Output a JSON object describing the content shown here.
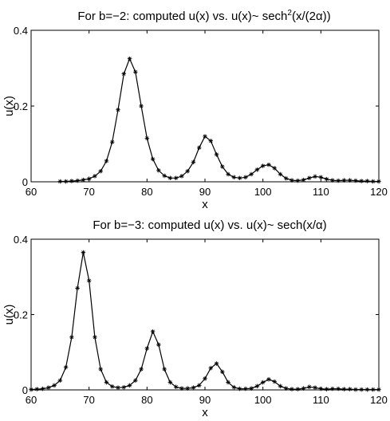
{
  "chart_data": [
    {
      "type": "line",
      "title_prefix": "For b=−2: computed u(x) vs. u(x)~ sech",
      "title_sup": "2",
      "title_suffix": "(x/(2α))",
      "xlabel": "x",
      "ylabel": "u(x)",
      "xlim": [
        60,
        120
      ],
      "ylim": [
        0,
        0.4
      ],
      "xticks": [
        "60",
        "70",
        "80",
        "90",
        "100",
        "110",
        "120"
      ],
      "yticks": [
        "0",
        "0.2",
        "0.4"
      ],
      "grid": false,
      "series": [
        {
          "marker": "asterisk",
          "style": "solid black line with asterisk markers",
          "x": [
            65,
            66,
            67,
            68,
            69,
            70,
            71,
            72,
            73,
            74,
            75,
            76,
            77,
            78,
            79,
            80,
            81,
            82,
            83,
            84,
            85,
            86,
            87,
            88,
            89,
            90,
            91,
            92,
            93,
            94,
            95,
            96,
            97,
            98,
            99,
            100,
            101,
            102,
            103,
            104,
            105,
            106,
            107,
            108,
            109,
            110,
            111,
            112,
            113,
            114,
            115,
            116,
            117,
            118,
            119,
            120
          ],
          "y": [
            0.001,
            0.001,
            0.002,
            0.003,
            0.005,
            0.008,
            0.015,
            0.028,
            0.055,
            0.105,
            0.19,
            0.285,
            0.325,
            0.29,
            0.2,
            0.115,
            0.06,
            0.03,
            0.016,
            0.01,
            0.01,
            0.015,
            0.028,
            0.052,
            0.09,
            0.12,
            0.108,
            0.072,
            0.04,
            0.02,
            0.012,
            0.01,
            0.012,
            0.02,
            0.032,
            0.042,
            0.045,
            0.036,
            0.02,
            0.009,
            0.004,
            0.003,
            0.005,
            0.01,
            0.014,
            0.012,
            0.007,
            0.004,
            0.003,
            0.004,
            0.004,
            0.003,
            0.002,
            0.002,
            0.001,
            0.001
          ]
        }
      ]
    },
    {
      "type": "line",
      "title_prefix": "For b=−3: computed u(x) vs. u(x)~ sech(x/α)",
      "title_sup": "",
      "title_suffix": "",
      "xlabel": "x",
      "ylabel": "u(x)",
      "xlim": [
        60,
        120
      ],
      "ylim": [
        0,
        0.4
      ],
      "xticks": [
        "60",
        "70",
        "80",
        "90",
        "100",
        "110",
        "120"
      ],
      "yticks": [
        "0",
        "0.2",
        "0.4"
      ],
      "grid": false,
      "series": [
        {
          "marker": "asterisk",
          "style": "solid black line with asterisk markers",
          "x": [
            60,
            61,
            62,
            63,
            64,
            65,
            66,
            67,
            68,
            69,
            70,
            71,
            72,
            73,
            74,
            75,
            76,
            77,
            78,
            79,
            80,
            81,
            82,
            83,
            84,
            85,
            86,
            87,
            88,
            89,
            90,
            91,
            92,
            93,
            94,
            95,
            96,
            97,
            98,
            99,
            100,
            101,
            102,
            103,
            104,
            105,
            106,
            107,
            108,
            109,
            110,
            111,
            112,
            113,
            114,
            115,
            116,
            117,
            118,
            119,
            120
          ],
          "y": [
            0.001,
            0.002,
            0.003,
            0.006,
            0.012,
            0.025,
            0.06,
            0.14,
            0.27,
            0.365,
            0.29,
            0.14,
            0.055,
            0.02,
            0.009,
            0.006,
            0.007,
            0.012,
            0.025,
            0.055,
            0.11,
            0.155,
            0.12,
            0.055,
            0.02,
            0.008,
            0.004,
            0.004,
            0.006,
            0.012,
            0.03,
            0.058,
            0.07,
            0.048,
            0.02,
            0.007,
            0.003,
            0.003,
            0.004,
            0.01,
            0.02,
            0.028,
            0.022,
            0.01,
            0.004,
            0.002,
            0.002,
            0.004,
            0.008,
            0.006,
            0.003,
            0.002,
            0.003,
            0.003,
            0.002,
            0.002,
            0.001,
            0.001,
            0.001,
            0.001,
            0.001
          ]
        }
      ]
    }
  ]
}
